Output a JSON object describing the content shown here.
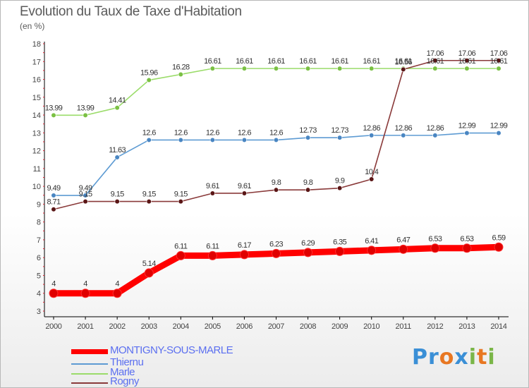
{
  "title": "Evolution du Taux de Taxe d'Habitation",
  "unit_label": "(en %)",
  "logo_text": "Proxiti",
  "chart_data": {
    "type": "line",
    "title": "Evolution du Taux de Taxe d'Habitation",
    "ylabel": "(en %)",
    "x": [
      "2000",
      "2001",
      "2002",
      "2003",
      "2004",
      "2005",
      "2006",
      "2007",
      "2008",
      "2009",
      "2010",
      "2011",
      "2012",
      "2013",
      "2014"
    ],
    "yticks": [
      3,
      4,
      5,
      6,
      7,
      8,
      9,
      10,
      11,
      12,
      13,
      14,
      15,
      16,
      17,
      18
    ],
    "ylim": [
      3,
      18
    ],
    "grid": false,
    "legend_position": "bottom-left",
    "series": [
      {
        "name": "MONTIGNY-SOUS-MARLE",
        "color": "#ff0000",
        "marker": "#e00000",
        "values": [
          4,
          4,
          4,
          5.14,
          6.11,
          6.11,
          6.17,
          6.23,
          6.29,
          6.35,
          6.41,
          6.47,
          6.53,
          6.53,
          6.59
        ],
        "labels": [
          "4",
          "4",
          "4",
          "5.14",
          "6.11",
          "6.11",
          "6.17",
          "6.23",
          "6.29",
          "6.35",
          "6.41",
          "6.47",
          "6.53",
          "6.53",
          "6.59"
        ]
      },
      {
        "name": "Thiernu",
        "color": "#5d9bd3",
        "marker": "#4a86c2",
        "values": [
          9.49,
          9.49,
          11.63,
          12.6,
          12.6,
          12.6,
          12.6,
          12.6,
          12.73,
          12.73,
          12.86,
          12.86,
          12.86,
          12.99,
          12.99
        ],
        "labels": [
          "9.49",
          "9.49",
          "11.63",
          "12.6",
          "12.6",
          "12.6",
          "12.6",
          "12.6",
          "12.73",
          "12.73",
          "12.86",
          "12.86",
          "12.86",
          "12.99",
          "12.99"
        ]
      },
      {
        "name": "Marle",
        "color": "#9bdc6a",
        "marker": "#7ac043",
        "values": [
          13.99,
          13.99,
          14.41,
          15.96,
          16.28,
          16.61,
          16.61,
          16.61,
          16.61,
          16.61,
          16.61,
          16.61,
          16.61,
          16.61,
          16.61
        ],
        "labels": [
          "13.99",
          "13.99",
          "14.41",
          "15.96",
          "16.28",
          "16.61",
          "16.61",
          "16.61",
          "16.61",
          "16.61",
          "16.61",
          "16.61",
          "16.61",
          "16.61",
          "16.61"
        ]
      },
      {
        "name": "Rogny",
        "color": "#8a3a3a",
        "marker": "#5a1616",
        "values": [
          8.71,
          9.15,
          9.15,
          9.15,
          9.15,
          9.61,
          9.61,
          9.8,
          9.8,
          9.9,
          10.4,
          16.56,
          17.06,
          17.06,
          17.06
        ],
        "labels": [
          "8.71",
          "9.15",
          "9.15",
          "9.15",
          "9.15",
          "9.61",
          "9.61",
          "9.8",
          "9.8",
          "9.9",
          "10.4",
          "16.56",
          "17.06",
          "17.06",
          "17.06"
        ]
      }
    ]
  }
}
